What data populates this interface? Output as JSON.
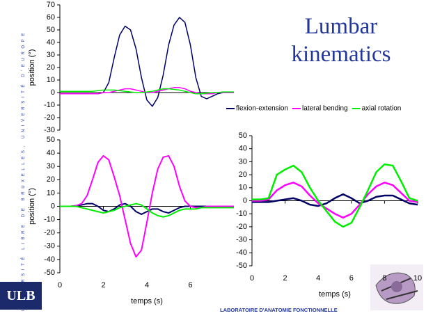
{
  "slide": {
    "title": "Lumbar kinematics",
    "side_text": "UNIVERSITÉ LIBRE DE BRUXELLES, UNIVERSITÉ D'EUROPE",
    "logo": "ULB",
    "footer": "LABORATOIRE D'ANATOMIE FONCTIONNELLE"
  },
  "chart_data": [
    {
      "type": "line",
      "ylabel": "position (°)",
      "legend": "below",
      "x": [
        0,
        0.25,
        0.5,
        0.75,
        1,
        1.25,
        1.5,
        1.75,
        2,
        2.25,
        2.5,
        2.75,
        3,
        3.25,
        3.5,
        3.75,
        4,
        4.25,
        4.5,
        4.75,
        5,
        5.25,
        5.5,
        5.75,
        6,
        6.25,
        6.5,
        6.75,
        7,
        7.25,
        7.5,
        7.75,
        8
      ],
      "xlim": [
        0,
        8
      ],
      "ylim": [
        -30,
        70
      ],
      "yticks": [
        -30,
        -20,
        -10,
        0,
        10,
        20,
        30,
        40,
        50,
        60,
        70
      ],
      "series": [
        {
          "name": "flexion-extension",
          "color": "#000066",
          "values": [
            -1,
            -1,
            -1,
            -1,
            -1,
            -1,
            -1,
            -1,
            0,
            8,
            28,
            46,
            53,
            50,
            35,
            12,
            -6,
            -11,
            -4,
            14,
            38,
            54,
            60,
            56,
            38,
            12,
            -3,
            -5,
            -3,
            -1,
            0,
            0,
            0
          ]
        },
        {
          "name": "lateral bending",
          "color": "#ff00ff",
          "values": [
            -1,
            -1,
            -1,
            -1,
            -1,
            -1,
            -1,
            -1,
            0,
            0,
            1,
            2,
            3,
            3,
            2,
            1,
            0,
            0,
            1,
            2,
            3,
            4,
            4,
            3,
            1,
            0,
            -1,
            -1,
            -1,
            0,
            0,
            0,
            0
          ]
        },
        {
          "name": "axial rotation",
          "color": "#00ee00",
          "values": [
            1,
            1,
            1,
            1,
            1,
            1,
            1,
            1.5,
            2,
            2,
            2,
            1.5,
            1,
            0.5,
            0,
            0,
            0.5,
            1,
            2,
            3,
            3,
            2.5,
            2,
            1,
            0,
            -1,
            -1,
            -0.5,
            0,
            0,
            0.5,
            0.5,
            0.5
          ]
        }
      ]
    },
    {
      "type": "line",
      "ylabel": "position (°)",
      "xlabel": "temps (s)",
      "x": [
        0,
        0.25,
        0.5,
        0.75,
        1,
        1.25,
        1.5,
        1.75,
        2,
        2.25,
        2.5,
        2.75,
        3,
        3.25,
        3.5,
        3.75,
        4,
        4.25,
        4.5,
        4.75,
        5,
        5.25,
        5.5,
        5.75,
        6,
        6.25,
        6.5,
        6.75,
        7,
        7.25,
        7.5,
        7.75,
        8
      ],
      "xlim": [
        0,
        8
      ],
      "xticks": [
        0,
        2,
        4,
        6
      ],
      "ylim": [
        -50,
        50
      ],
      "yticks": [
        -50,
        -40,
        -30,
        -20,
        -10,
        0,
        10,
        20,
        30,
        40,
        50
      ],
      "series": [
        {
          "color": "#000066",
          "values": [
            0,
            0,
            0,
            0.5,
            1,
            2,
            2,
            0,
            -3,
            -4,
            -2,
            1,
            2,
            0,
            -4,
            -6,
            -4,
            -2,
            -2,
            -4,
            -5,
            -3,
            -1,
            0,
            0,
            0,
            0,
            0,
            0,
            0,
            0,
            0,
            0
          ]
        },
        {
          "color": "#ff00ff",
          "values": [
            0,
            0,
            0,
            0.5,
            2,
            8,
            20,
            33,
            38,
            35,
            22,
            8,
            -10,
            -28,
            -38,
            -33,
            -12,
            10,
            28,
            37,
            38,
            30,
            15,
            4,
            0,
            -1,
            -1,
            0,
            0,
            0,
            0,
            0,
            0
          ]
        },
        {
          "color": "#00ee00",
          "values": [
            0,
            0,
            0,
            0,
            -1,
            -2,
            -3,
            -4,
            -5,
            -4,
            -3,
            -1,
            0,
            1,
            2,
            1,
            -2,
            -5,
            -7,
            -8,
            -7,
            -5,
            -3,
            -2,
            -2,
            -2,
            -1,
            -1,
            -1,
            -1,
            -1,
            -1,
            -1
          ]
        }
      ]
    },
    {
      "type": "line",
      "xlabel": "temps (s)",
      "x": [
        0,
        0.5,
        1,
        1.5,
        2,
        2.5,
        3,
        3.5,
        4,
        4.5,
        5,
        5.5,
        6,
        6.5,
        7,
        7.5,
        8,
        8.5,
        9,
        9.5,
        10
      ],
      "xlim": [
        0,
        10
      ],
      "xticks": [
        0,
        2,
        4,
        6,
        8,
        10
      ],
      "ylim": [
        -50,
        50
      ],
      "yticks": [
        -50,
        -40,
        -30,
        -20,
        -10,
        0,
        10,
        20,
        30,
        40,
        50
      ],
      "series": [
        {
          "color": "#000066",
          "values": [
            -1,
            -1,
            -1,
            0,
            1,
            2,
            0,
            -3,
            -4,
            -2,
            2,
            5,
            2,
            -2,
            0,
            3,
            4,
            4,
            1,
            -2,
            -3
          ]
        },
        {
          "color": "#ff00ff",
          "values": [
            0,
            0,
            1,
            8,
            12,
            14,
            11,
            4,
            -2,
            -6,
            -10,
            -13,
            -10,
            -3,
            5,
            11,
            14,
            12,
            6,
            0,
            -1
          ]
        },
        {
          "color": "#00ee00",
          "values": [
            1,
            1,
            2,
            20,
            24,
            27,
            22,
            10,
            0,
            -8,
            -16,
            -20,
            -17,
            -5,
            8,
            22,
            28,
            27,
            15,
            2,
            0
          ]
        }
      ]
    }
  ]
}
